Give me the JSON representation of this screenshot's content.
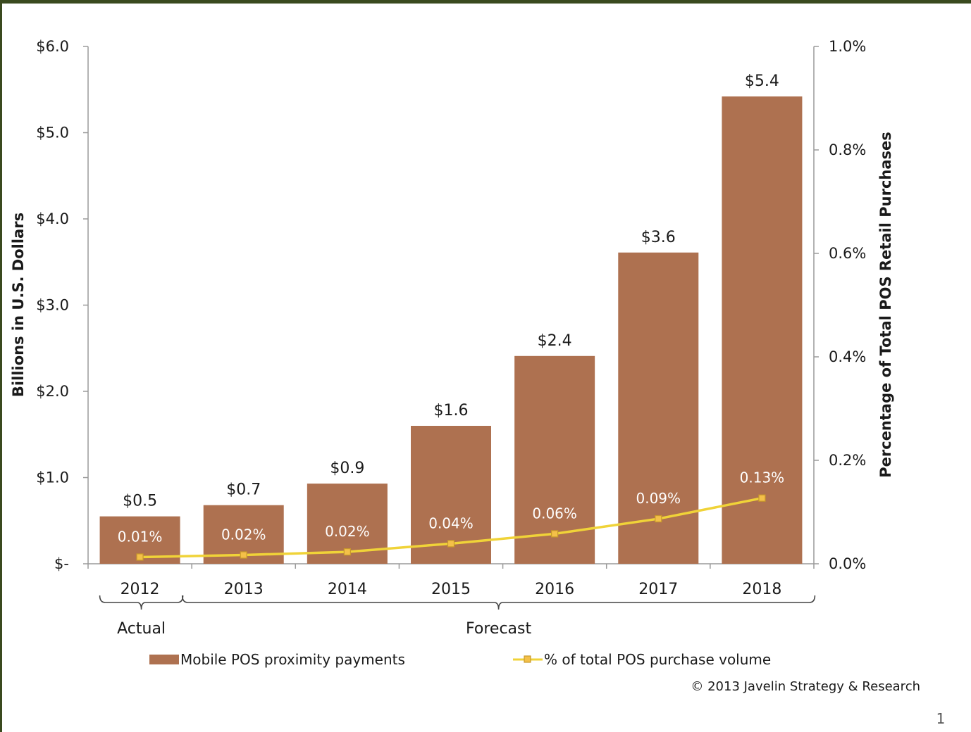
{
  "colors": {
    "bar": "#ae7150",
    "line": "#f0d338",
    "marker_fill": "#f4c049",
    "marker_stroke": "#c99a2a",
    "axis": "#9a9a9a",
    "text": "#1a1a1a",
    "inner_label": "#ffffff",
    "frame": "#3a4a1f"
  },
  "chart_data": {
    "type": "bar",
    "categories": [
      "2012",
      "2013",
      "2014",
      "2015",
      "2016",
      "2017",
      "2018"
    ],
    "series": [
      {
        "name": "Mobile POS proximity payments",
        "type": "bar",
        "axis": "left",
        "values": [
          0.55,
          0.68,
          0.93,
          1.6,
          2.41,
          3.61,
          5.42
        ],
        "labels": [
          "$0.5",
          "$0.7",
          "$0.9",
          "$1.6",
          "$2.4",
          "$3.6",
          "$5.4"
        ]
      },
      {
        "name": "% of total POS purchase volume",
        "type": "line",
        "axis": "right",
        "values": [
          0.01,
          0.02,
          0.02,
          0.04,
          0.06,
          0.09,
          0.13
        ],
        "plot_values": [
          0.013,
          0.017,
          0.023,
          0.039,
          0.058,
          0.087,
          0.127
        ],
        "labels": [
          "0.01%",
          "0.02%",
          "0.02%",
          "0.04%",
          "0.06%",
          "0.09%",
          "0.13%"
        ]
      }
    ],
    "y_left": {
      "label": "Billions in U.S. Dollars",
      "min": 0,
      "max": 6,
      "ticks": [
        0,
        1,
        2,
        3,
        4,
        5,
        6
      ],
      "tick_labels": [
        "$-",
        "$1.0",
        "$2.0",
        "$3.0",
        "$4.0",
        "$5.0",
        "$6.0"
      ]
    },
    "y_right": {
      "label": "Percentage of Total POS Retail Purchases",
      "min": 0,
      "max": 1.0,
      "ticks": [
        0,
        0.2,
        0.4,
        0.6,
        0.8,
        1.0
      ],
      "tick_labels": [
        "0.0%",
        "0.2%",
        "0.4%",
        "0.6%",
        "0.8%",
        "1.0%"
      ]
    },
    "groups": [
      {
        "label": "Actual",
        "from": 0,
        "to": 0
      },
      {
        "label": "Forecast",
        "from": 1,
        "to": 6
      }
    ],
    "grid": false,
    "legend_position": "bottom"
  },
  "footer": {
    "copyright": "© 2013 Javelin Strategy & Research",
    "page_number": "1"
  }
}
